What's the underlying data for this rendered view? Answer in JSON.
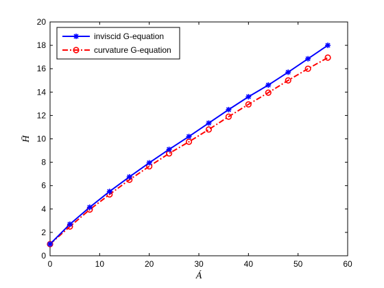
{
  "chart_data": {
    "type": "line",
    "xlabel": "Á",
    "ylabel": "H̄",
    "xlim": [
      0,
      60
    ],
    "ylim": [
      0,
      20
    ],
    "xticks": [
      "0",
      "10",
      "20",
      "30",
      "40",
      "50",
      "60"
    ],
    "yticks": [
      "0",
      "2",
      "4",
      "6",
      "8",
      "10",
      "12",
      "14",
      "16",
      "18",
      "20"
    ],
    "grid": false,
    "legend_position": "top-left",
    "series": [
      {
        "name": "inviscid G-equation",
        "color": "#0000ff",
        "marker": "star",
        "line_style": "solid",
        "x": [
          0,
          4,
          8,
          12,
          16,
          20,
          24,
          28,
          32,
          36,
          40,
          44,
          48,
          52,
          56
        ],
        "y": [
          1.0,
          2.7,
          4.15,
          5.5,
          6.75,
          7.95,
          9.1,
          10.2,
          11.35,
          12.5,
          13.6,
          14.6,
          15.7,
          16.85,
          18.0
        ]
      },
      {
        "name": "curvature G-equation",
        "color": "#ff0000",
        "marker": "circle",
        "line_style": "dash-dot",
        "x": [
          0,
          4,
          8,
          12,
          16,
          20,
          24,
          28,
          32,
          36,
          40,
          44,
          48,
          52,
          56
        ],
        "y": [
          1.0,
          2.5,
          3.95,
          5.25,
          6.5,
          7.65,
          8.75,
          9.75,
          10.8,
          11.9,
          12.95,
          13.95,
          15.0,
          16.0,
          16.95
        ]
      }
    ]
  }
}
